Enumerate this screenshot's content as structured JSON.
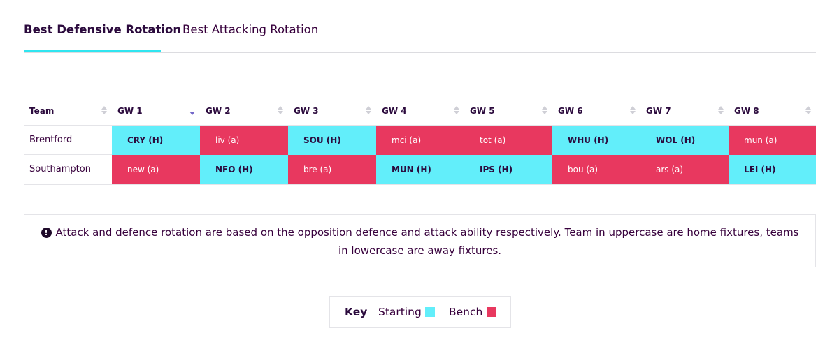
{
  "tabs": [
    {
      "label": "Best Defensive Rotation",
      "active": true
    },
    {
      "label": "Best Attacking Rotation",
      "active": false
    }
  ],
  "table": {
    "headers": [
      "Team",
      "GW 1",
      "GW 2",
      "GW 3",
      "GW 4",
      "GW 5",
      "GW 6",
      "GW 7",
      "GW 8"
    ],
    "sorted_column": "GW 1",
    "rows": [
      {
        "team": "Brentford",
        "cells": [
          {
            "label": "CRY (H)",
            "status": "start"
          },
          {
            "label": "liv (a)",
            "status": "bench"
          },
          {
            "label": "SOU (H)",
            "status": "start"
          },
          {
            "label": "mci (a)",
            "status": "bench"
          },
          {
            "label": "tot (a)",
            "status": "bench"
          },
          {
            "label": "WHU (H)",
            "status": "start"
          },
          {
            "label": "WOL (H)",
            "status": "start"
          },
          {
            "label": "mun (a)",
            "status": "bench"
          }
        ]
      },
      {
        "team": "Southampton",
        "cells": [
          {
            "label": "new (a)",
            "status": "bench"
          },
          {
            "label": "NFO (H)",
            "status": "start"
          },
          {
            "label": "bre (a)",
            "status": "bench"
          },
          {
            "label": "MUN (H)",
            "status": "start"
          },
          {
            "label": "IPS (H)",
            "status": "start"
          },
          {
            "label": "bou (a)",
            "status": "bench"
          },
          {
            "label": "ars (a)",
            "status": "bench"
          },
          {
            "label": "LEI (H)",
            "status": "start"
          }
        ]
      }
    ]
  },
  "info": {
    "icon": "exclamation-circle-icon",
    "text": "Attack and defence rotation are based on the opposition defence and attack ability respectively. Team in uppercase are home fixtures, teams in lowercase are away fixtures."
  },
  "key": {
    "title": "Key",
    "starting_label": "Starting",
    "bench_label": "Bench"
  },
  "colors": {
    "starting": "#62eefa",
    "bench": "#e8385f",
    "accent": "#30e5f0"
  }
}
